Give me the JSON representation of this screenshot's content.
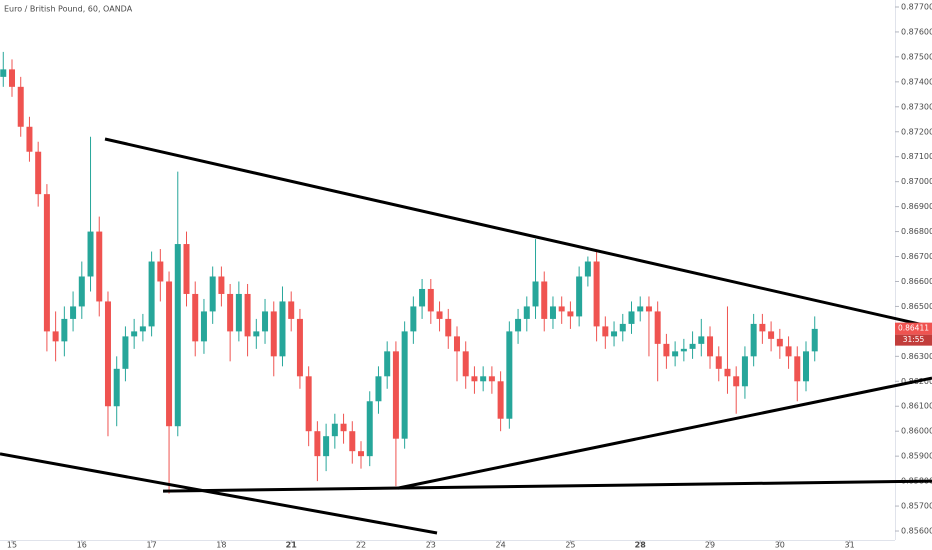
{
  "chart_data": {
    "type": "candlestick",
    "title": "Euro / British Pound, 60, OANDA",
    "up_color": "#26a69a",
    "down_color": "#ef5350",
    "grid": false,
    "xlim": [
      -1.375,
      101.2
    ],
    "ylim": [
      0.85564,
      0.87728
    ],
    "xticks": [
      {
        "value": 0,
        "label": "15"
      },
      {
        "value": 8,
        "label": "16"
      },
      {
        "value": 16,
        "label": "17"
      },
      {
        "value": 24,
        "label": "18"
      },
      {
        "value": 32,
        "label": "21",
        "bold": true
      },
      {
        "value": 40,
        "label": "22"
      },
      {
        "value": 48,
        "label": "23"
      },
      {
        "value": 56,
        "label": "24"
      },
      {
        "value": 64,
        "label": "25"
      },
      {
        "value": 72,
        "label": "28",
        "bold": true
      },
      {
        "value": 80,
        "label": "29"
      },
      {
        "value": 88,
        "label": "30"
      },
      {
        "value": 96,
        "label": "31"
      }
    ],
    "yticks": [
      {
        "value": 0.856,
        "label": "0.85600"
      },
      {
        "value": 0.857,
        "label": "0.85700"
      },
      {
        "value": 0.858,
        "label": "0.85800"
      },
      {
        "value": 0.859,
        "label": "0.85900"
      },
      {
        "value": 0.86,
        "label": "0.86000"
      },
      {
        "value": 0.861,
        "label": "0.86100"
      },
      {
        "value": 0.862,
        "label": "0.86200"
      },
      {
        "value": 0.863,
        "label": "0.86300"
      },
      {
        "value": 0.864,
        "label": "0.86400"
      },
      {
        "value": 0.865,
        "label": "0.86500"
      },
      {
        "value": 0.866,
        "label": "0.86600"
      },
      {
        "value": 0.867,
        "label": "0.86700"
      },
      {
        "value": 0.868,
        "label": "0.86800"
      },
      {
        "value": 0.869,
        "label": "0.86900"
      },
      {
        "value": 0.87,
        "label": "0.87000"
      },
      {
        "value": 0.871,
        "label": "0.87100"
      },
      {
        "value": 0.872,
        "label": "0.87200"
      },
      {
        "value": 0.873,
        "label": "0.87300"
      },
      {
        "value": 0.874,
        "label": "0.87400"
      },
      {
        "value": 0.875,
        "label": "0.87500"
      },
      {
        "value": 0.876,
        "label": "0.87600"
      },
      {
        "value": 0.877,
        "label": "0.87700"
      }
    ],
    "x": [
      -1,
      0,
      1,
      2,
      3,
      4,
      5,
      6,
      7,
      8,
      9,
      10,
      11,
      12,
      13,
      14,
      15,
      16,
      17,
      18,
      19,
      20,
      21,
      22,
      23,
      24,
      25,
      26,
      27,
      28,
      29,
      30,
      31,
      32,
      33,
      34,
      35,
      36,
      37,
      38,
      39,
      40,
      41,
      42,
      43,
      44,
      45,
      46,
      47,
      48,
      49,
      50,
      51,
      52,
      53,
      54,
      55,
      56,
      57,
      58,
      59,
      60,
      61,
      62,
      63,
      64,
      65,
      66,
      67,
      68,
      69,
      70,
      71,
      72,
      73,
      74,
      75,
      76,
      77,
      78,
      79,
      80,
      81,
      82,
      83,
      84,
      85,
      86,
      87,
      88,
      89,
      90,
      91,
      92
    ],
    "open": [
      0.8742,
      0.8745,
      0.8738,
      0.8722,
      0.8712,
      0.8695,
      0.864,
      0.8636,
      0.8645,
      0.865,
      0.8662,
      0.868,
      0.8652,
      0.861,
      0.8625,
      0.8638,
      0.864,
      0.8642,
      0.8668,
      0.866,
      0.8602,
      0.8675,
      0.8655,
      0.8636,
      0.8648,
      0.8662,
      0.8655,
      0.864,
      0.8655,
      0.8638,
      0.864,
      0.8648,
      0.863,
      0.8652,
      0.8645,
      0.8622,
      0.86,
      0.859,
      0.8598,
      0.8603,
      0.86,
      0.8592,
      0.859,
      0.8612,
      0.8622,
      0.8632,
      0.8597,
      0.864,
      0.865,
      0.8657,
      0.8648,
      0.8645,
      0.8638,
      0.8632,
      0.8622,
      0.862,
      0.8622,
      0.862,
      0.8605,
      0.864,
      0.8645,
      0.865,
      0.866,
      0.8645,
      0.865,
      0.8648,
      0.8646,
      0.8662,
      0.8668,
      0.8642,
      0.8638,
      0.864,
      0.8643,
      0.8648,
      0.865,
      0.8648,
      0.8635,
      0.863,
      0.8632,
      0.8633,
      0.8635,
      0.8638,
      0.863,
      0.8625,
      0.8622,
      0.8618,
      0.863,
      0.8643,
      0.864,
      0.8637,
      0.8634,
      0.863,
      0.862,
      0.8632
    ],
    "high": [
      0.8752,
      0.8749,
      0.8742,
      0.8726,
      0.8716,
      0.8699,
      0.8648,
      0.865,
      0.8656,
      0.8668,
      0.8718,
      0.8686,
      0.8656,
      0.863,
      0.8642,
      0.8645,
      0.8647,
      0.8672,
      0.8673,
      0.8664,
      0.8704,
      0.868,
      0.866,
      0.8653,
      0.8666,
      0.8666,
      0.8659,
      0.866,
      0.8659,
      0.8645,
      0.8653,
      0.8652,
      0.8658,
      0.8656,
      0.8649,
      0.8626,
      0.8604,
      0.8603,
      0.8607,
      0.8607,
      0.8604,
      0.8596,
      0.8616,
      0.8626,
      0.8636,
      0.8636,
      0.8644,
      0.8654,
      0.8661,
      0.8661,
      0.8652,
      0.8649,
      0.8642,
      0.8636,
      0.8626,
      0.8626,
      0.8626,
      0.8624,
      0.8644,
      0.8649,
      0.8654,
      0.8677,
      0.8664,
      0.8654,
      0.8654,
      0.8652,
      0.8666,
      0.867,
      0.8672,
      0.8646,
      0.8644,
      0.8647,
      0.8652,
      0.8654,
      0.8654,
      0.8652,
      0.8639,
      0.8636,
      0.8637,
      0.864,
      0.8645,
      0.8642,
      0.8634,
      0.865,
      0.8626,
      0.8634,
      0.8647,
      0.8647,
      0.8644,
      0.8641,
      0.8638,
      0.8634,
      0.8636,
      0.8646
    ],
    "low": [
      0.8738,
      0.8734,
      0.8718,
      0.8708,
      0.869,
      0.8632,
      0.8628,
      0.863,
      0.864,
      0.8645,
      0.8656,
      0.8646,
      0.8598,
      0.8602,
      0.862,
      0.8633,
      0.8636,
      0.8638,
      0.8652,
      0.8575,
      0.8598,
      0.865,
      0.863,
      0.8631,
      0.8643,
      0.865,
      0.8628,
      0.8636,
      0.863,
      0.8633,
      0.8635,
      0.8622,
      0.8626,
      0.864,
      0.8617,
      0.8594,
      0.858,
      0.8584,
      0.8593,
      0.8595,
      0.8587,
      0.8585,
      0.8586,
      0.8607,
      0.8617,
      0.8578,
      0.8593,
      0.8635,
      0.8645,
      0.8643,
      0.864,
      0.8633,
      0.862,
      0.8617,
      0.8615,
      0.8616,
      0.8615,
      0.86,
      0.8601,
      0.8635,
      0.864,
      0.8645,
      0.864,
      0.8641,
      0.8643,
      0.8641,
      0.8642,
      0.8658,
      0.8636,
      0.8633,
      0.8634,
      0.8636,
      0.8639,
      0.8644,
      0.863,
      0.862,
      0.8625,
      0.8626,
      0.8628,
      0.8629,
      0.863,
      0.8625,
      0.862,
      0.8615,
      0.8607,
      0.8613,
      0.8626,
      0.8635,
      0.8632,
      0.8629,
      0.8625,
      0.8612,
      0.8616,
      0.8628
    ],
    "close": [
      0.8745,
      0.8738,
      0.8722,
      0.8712,
      0.8695,
      0.864,
      0.8636,
      0.8645,
      0.865,
      0.8662,
      0.868,
      0.8652,
      0.861,
      0.8625,
      0.8638,
      0.864,
      0.8642,
      0.8668,
      0.866,
      0.8602,
      0.8675,
      0.8655,
      0.8636,
      0.8648,
      0.8662,
      0.8655,
      0.864,
      0.8655,
      0.8638,
      0.864,
      0.8648,
      0.863,
      0.8652,
      0.8645,
      0.8622,
      0.86,
      0.859,
      0.8598,
      0.8603,
      0.86,
      0.8592,
      0.859,
      0.8612,
      0.8622,
      0.8632,
      0.8597,
      0.864,
      0.865,
      0.8657,
      0.8648,
      0.8645,
      0.8638,
      0.8632,
      0.8622,
      0.862,
      0.8622,
      0.862,
      0.8605,
      0.864,
      0.8645,
      0.865,
      0.866,
      0.8645,
      0.865,
      0.8648,
      0.8646,
      0.8662,
      0.8668,
      0.8642,
      0.8638,
      0.864,
      0.8643,
      0.8648,
      0.865,
      0.8648,
      0.8635,
      0.863,
      0.8632,
      0.8633,
      0.8635,
      0.8638,
      0.863,
      0.8625,
      0.8622,
      0.8618,
      0.863,
      0.8643,
      0.864,
      0.8637,
      0.8634,
      0.863,
      0.862,
      0.8632,
      0.8641
    ],
    "current_price": {
      "value": 0.86411,
      "label": "0.86411",
      "color": "#ef5350"
    },
    "countdown": "31:55",
    "drawings": [
      {
        "x": [
          10.66,
          105.44
        ],
        "y": [
          0.87171,
          0.86418
        ]
      },
      {
        "x": [
          -1.375,
          48.71
        ],
        "y": [
          0.85909,
          0.85592
        ]
      },
      {
        "x": [
          17.31,
          105.44
        ],
        "y": [
          0.8576,
          0.858
        ]
      },
      {
        "x": [
          44.24,
          105.44
        ],
        "y": [
          0.85772,
          0.86213
        ]
      }
    ]
  }
}
